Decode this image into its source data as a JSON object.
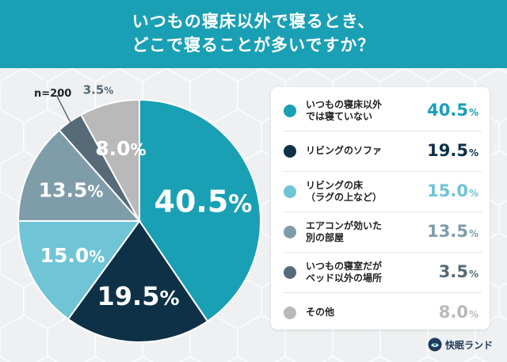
{
  "title": {
    "line1": "いつもの寝床以外で寝るとき、",
    "line2": "どこで寝ることが多いですか？"
  },
  "sample_size": "n=200",
  "brand": {
    "name": "快眠ランド",
    "icon": "brand-logo-icon"
  },
  "colors": {
    "header_bg": "#1aa0b4",
    "background": "#eef0f1"
  },
  "chart_data": {
    "type": "pie",
    "title": "いつもの寝床以外で寝るとき、どこで寝ることが多いですか？",
    "unit": "%",
    "slices": [
      {
        "label": "いつもの寝床以外では寝ていない",
        "label_lines": [
          "いつもの寝床以外",
          "では寝ていない"
        ],
        "value": 40.5,
        "value_text": "40.5",
        "color": "#1aa0b4",
        "label_color": "#ffffff"
      },
      {
        "label": "リビングのソファ",
        "label_lines": [
          "リビングのソファ"
        ],
        "value": 19.5,
        "value_text": "19.5",
        "color": "#0f3147",
        "label_color": "#ffffff"
      },
      {
        "label": "リビングの床（ラグの上など）",
        "label_lines": [
          "リビングの床",
          "（ラグの上など）"
        ],
        "value": 15.0,
        "value_text": "15.0",
        "color": "#6fc4d6",
        "label_color": "#ffffff"
      },
      {
        "label": "エアコンが効いた別の部屋",
        "label_lines": [
          "エアコンが効いた",
          "別の部屋"
        ],
        "value": 13.5,
        "value_text": "13.5",
        "color": "#7f9ca9",
        "label_color": "#ffffff"
      },
      {
        "label": "いつもの寝室だがベッド以外の場所",
        "label_lines": [
          "いつもの寝室だが",
          "ベッド以外の場所"
        ],
        "value": 3.5,
        "value_text": "3.5",
        "color": "#566a77",
        "label_color": "#566a77"
      },
      {
        "label": "その他",
        "label_lines": [
          "その他"
        ],
        "value": 8.0,
        "value_text": "8.0",
        "color": "#b9b9b9",
        "label_color": "#ffffff"
      }
    ]
  }
}
